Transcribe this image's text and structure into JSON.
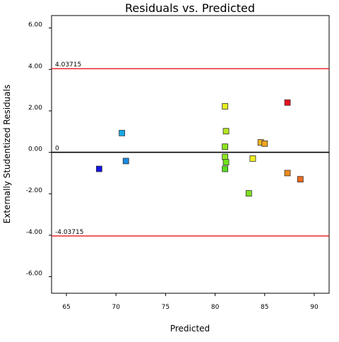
{
  "chart_data": {
    "type": "scatter",
    "title": "Residuals vs. Predicted",
    "xlabel": "Predicted",
    "ylabel": "Externally Studentized Residuals",
    "xlim": [
      63.5,
      91.5
    ],
    "ylim": [
      -6.8,
      6.6
    ],
    "xticks": [
      65,
      70,
      75,
      80,
      85,
      90
    ],
    "xtick_labels": [
      "65",
      "70",
      "75",
      "80",
      "85",
      "90"
    ],
    "yticks": [
      6,
      4,
      2,
      0,
      -2,
      -4,
      -6
    ],
    "ytick_labels": [
      "6.00",
      "4.00",
      "2.00",
      "0.00",
      "-2.00",
      "-4.00",
      "-6.00"
    ],
    "grid": false,
    "reference_lines": [
      {
        "value": 4.03715,
        "label": "4.03715",
        "color": "#e8141c"
      },
      {
        "value": 0,
        "label": "0",
        "color": "#000000"
      },
      {
        "value": -4.03715,
        "label": "-4.03715",
        "color": "#e8141c"
      }
    ],
    "points": [
      {
        "x": 68.3,
        "y": -0.8,
        "color": "#1414e6"
      },
      {
        "x": 70.6,
        "y": 0.93,
        "color": "#19a8e8"
      },
      {
        "x": 71.0,
        "y": -0.42,
        "color": "#1a8ae0"
      },
      {
        "x": 81.0,
        "y": 2.22,
        "color": "#e6f020"
      },
      {
        "x": 81.1,
        "y": 1.02,
        "color": "#b4e820"
      },
      {
        "x": 81.0,
        "y": 0.27,
        "color": "#8ce61e"
      },
      {
        "x": 81.0,
        "y": -0.22,
        "color": "#8ce61e"
      },
      {
        "x": 81.1,
        "y": -0.48,
        "color": "#70e21e"
      },
      {
        "x": 81.0,
        "y": -0.8,
        "color": "#58de1e"
      },
      {
        "x": 83.4,
        "y": -1.98,
        "color": "#7ee01e"
      },
      {
        "x": 83.8,
        "y": -0.3,
        "color": "#f0f020"
      },
      {
        "x": 84.6,
        "y": 0.48,
        "color": "#f0b41e"
      },
      {
        "x": 85.0,
        "y": 0.42,
        "color": "#f0a51e"
      },
      {
        "x": 87.3,
        "y": 2.4,
        "color": "#e8141c"
      },
      {
        "x": 87.3,
        "y": -1.0,
        "color": "#f08a1e"
      },
      {
        "x": 88.6,
        "y": -1.3,
        "color": "#f06a1e"
      }
    ]
  }
}
